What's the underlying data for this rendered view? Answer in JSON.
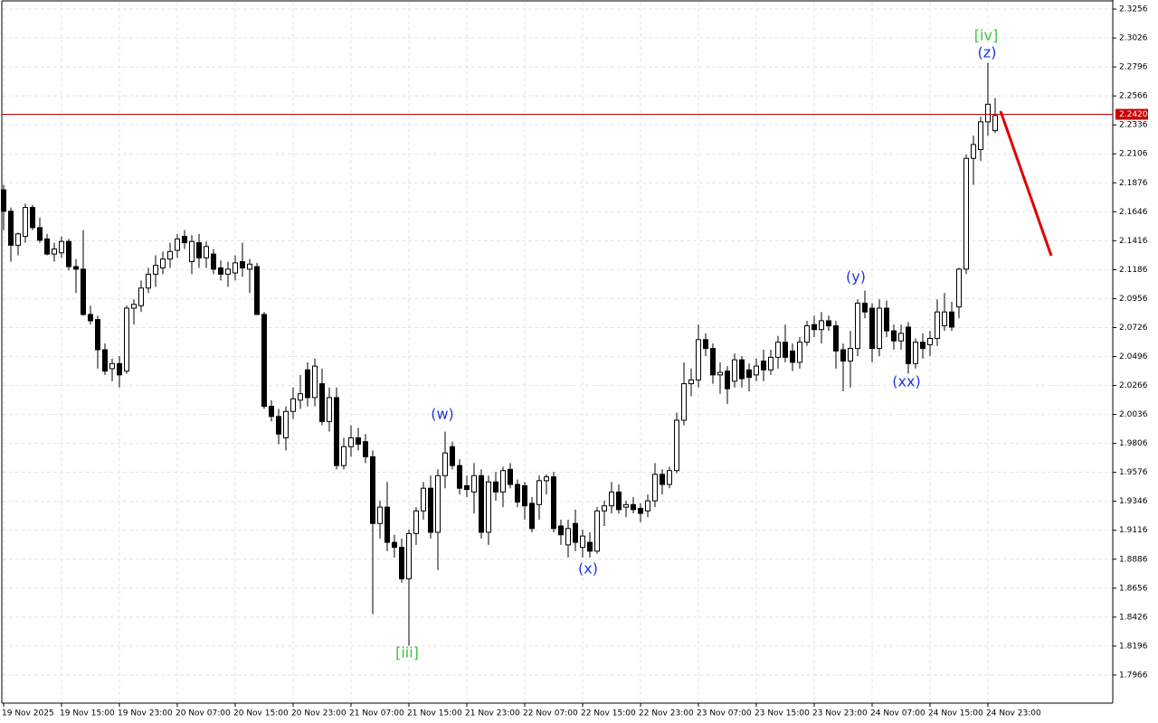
{
  "chart_data": {
    "type": "candlestick",
    "categories": [
      "19 Nov 2025",
      null,
      null,
      null,
      null,
      null,
      null,
      null,
      "19 Nov 15:00",
      null,
      null,
      null,
      null,
      null,
      null,
      null,
      "19 Nov 23:00",
      null,
      null,
      null,
      null,
      null,
      null,
      null,
      "20 Nov 07:00",
      null,
      null,
      null,
      null,
      null,
      null,
      null,
      "20 Nov 15:00",
      null,
      null,
      null,
      null,
      null,
      null,
      null,
      "20 Nov 23:00",
      null,
      null,
      null,
      null,
      null,
      null,
      null,
      "21 Nov 07:00",
      null,
      null,
      null,
      null,
      null,
      null,
      null,
      "21 Nov 15:00",
      null,
      null,
      null,
      null,
      null,
      null,
      null,
      "21 Nov 23:00",
      null,
      null,
      null,
      null,
      null,
      null,
      null,
      "22 Nov 07:00",
      null,
      null,
      null,
      null,
      null,
      null,
      null,
      "22 Nov 15:00",
      null,
      null,
      null,
      null,
      null,
      null,
      null,
      "22 Nov 23:00",
      null,
      null,
      null,
      null,
      null,
      null,
      null,
      "23 Nov 07:00",
      null,
      null,
      null,
      null,
      null,
      null,
      null,
      "23 Nov 15:00",
      null,
      null,
      null,
      null,
      null,
      null,
      null,
      "23 Nov 23:00",
      null,
      null,
      null,
      null,
      null,
      null,
      null,
      "24 Nov 07:00",
      null,
      null,
      null,
      null,
      null,
      null,
      null,
      "24 Nov 15:00",
      null,
      null,
      null,
      null,
      null,
      null,
      null,
      "24 Nov 23:00",
      null
    ],
    "open": [
      2.182,
      2.165,
      2.138,
      2.145,
      2.168,
      2.152,
      2.143,
      2.131,
      2.132,
      2.141,
      2.121,
      2.119,
      2.083,
      2.079,
      2.055,
      2.04,
      2.044,
      2.038,
      2.088,
      2.09,
      2.104,
      2.115,
      2.12,
      2.127,
      2.134,
      2.145,
      2.125,
      2.14,
      2.128,
      2.131,
      2.12,
      2.115,
      2.116,
      2.125,
      2.119,
      2.121,
      2.083,
      2.01,
      2.002,
      1.985,
      2.006,
      2.015,
      2.039,
      2.017,
      2.028,
      1.998,
      2.017,
      1.963,
      1.978,
      1.985,
      1.982,
      1.97,
      1.917,
      1.93,
      1.902,
      1.898,
      1.873,
      1.909,
      1.927,
      1.945,
      1.91,
      1.955,
      1.978,
      1.963,
      1.947,
      1.942,
      1.955,
      1.91,
      1.95,
      1.942,
      1.96,
      1.948,
      1.947,
      1.933,
      1.932,
      1.951,
      1.954,
      1.915,
      1.9,
      1.917,
      1.898,
      1.902,
      1.895,
      1.927,
      1.931,
      1.942,
      1.93,
      1.932,
      1.929,
      1.927,
      1.935,
      1.956,
      1.948,
      1.959,
      1.999,
      2.028,
      2.031,
      2.063,
      2.056,
      2.035,
      2.038,
      2.03,
      2.047,
      2.039,
      2.035,
      2.046,
      2.039,
      2.049,
      2.061,
      2.054,
      2.045,
      2.061,
      2.075,
      2.071,
      2.078,
      2.074,
      2.055,
      2.046,
      2.056,
      2.092,
      2.088,
      2.056,
      2.088,
      2.07,
      2.062,
      2.073,
      2.044,
      2.061,
      2.059,
      2.064,
      2.074,
      2.085,
      2.089,
      2.119,
      2.207,
      2.214,
      2.236,
      2.229
    ],
    "high": [
      2.186,
      2.168,
      2.148,
      2.171,
      2.17,
      2.16,
      2.147,
      2.14,
      2.145,
      2.143,
      2.127,
      2.15,
      2.09,
      2.082,
      2.06,
      2.048,
      2.05,
      2.09,
      2.095,
      2.11,
      2.12,
      2.13,
      2.133,
      2.14,
      2.147,
      2.15,
      2.146,
      2.147,
      2.141,
      2.135,
      2.126,
      2.125,
      2.13,
      2.14,
      2.127,
      2.124,
      2.085,
      2.015,
      2.008,
      2.01,
      2.025,
      2.035,
      2.045,
      2.048,
      2.04,
      2.025,
      2.025,
      1.985,
      1.995,
      1.993,
      1.988,
      1.975,
      1.935,
      1.95,
      1.908,
      1.905,
      1.912,
      1.93,
      1.95,
      1.955,
      1.96,
      1.99,
      1.982,
      1.968,
      1.955,
      1.965,
      1.96,
      1.955,
      1.958,
      1.962,
      1.965,
      1.952,
      1.95,
      1.938,
      1.955,
      1.956,
      1.958,
      1.92,
      1.92,
      1.928,
      1.912,
      1.91,
      1.93,
      1.935,
      1.95,
      1.948,
      1.935,
      1.938,
      1.933,
      1.94,
      1.965,
      1.96,
      1.962,
      2.005,
      2.045,
      2.04,
      2.075,
      2.068,
      2.06,
      2.045,
      2.042,
      2.052,
      2.05,
      2.044,
      2.048,
      2.055,
      2.055,
      2.066,
      2.075,
      2.06,
      2.065,
      2.078,
      2.082,
      2.085,
      2.082,
      2.078,
      2.06,
      2.07,
      2.095,
      2.102,
      2.092,
      2.095,
      2.094,
      2.075,
      2.075,
      2.077,
      2.064,
      2.068,
      2.07,
      2.095,
      2.1,
      2.093,
      2.12,
      2.21,
      2.225,
      2.24,
      2.283,
      2.255
    ],
    "low": [
      2.15,
      2.125,
      2.13,
      2.14,
      2.15,
      2.14,
      2.13,
      2.125,
      2.128,
      2.118,
      2.1,
      2.082,
      2.075,
      2.04,
      2.035,
      2.03,
      2.025,
      2.036,
      2.075,
      2.085,
      2.1,
      2.105,
      2.115,
      2.12,
      2.128,
      2.135,
      2.115,
      2.12,
      2.12,
      2.115,
      2.11,
      2.105,
      2.11,
      2.113,
      2.1,
      2.085,
      2.008,
      1.998,
      1.98,
      1.975,
      2.0,
      2.008,
      2.01,
      2.01,
      1.995,
      1.99,
      1.96,
      1.96,
      1.97,
      1.975,
      1.965,
      1.845,
      1.905,
      1.895,
      1.89,
      1.87,
      1.82,
      1.9,
      1.92,
      1.905,
      1.88,
      1.945,
      1.96,
      1.94,
      1.938,
      1.925,
      1.905,
      1.9,
      1.935,
      1.93,
      1.945,
      1.93,
      1.92,
      1.91,
      1.92,
      1.94,
      1.91,
      1.9,
      1.89,
      1.895,
      1.89,
      1.89,
      1.893,
      1.915,
      1.925,
      1.925,
      1.922,
      1.925,
      1.918,
      1.922,
      1.93,
      1.94,
      1.945,
      1.957,
      1.995,
      2.018,
      2.025,
      2.05,
      2.028,
      2.02,
      2.012,
      2.025,
      2.025,
      2.022,
      2.03,
      2.03,
      2.035,
      2.04,
      2.045,
      2.038,
      2.04,
      2.058,
      2.065,
      2.06,
      2.07,
      2.04,
      2.022,
      2.025,
      2.05,
      2.08,
      2.045,
      2.05,
      2.065,
      2.055,
      2.055,
      2.036,
      2.04,
      2.048,
      2.05,
      2.058,
      2.07,
      2.07,
      2.08,
      2.115,
      2.186,
      2.205,
      2.225,
      2.227
    ],
    "close": [
      2.165,
      2.138,
      2.147,
      2.168,
      2.152,
      2.142,
      2.131,
      2.135,
      2.141,
      2.121,
      2.119,
      2.083,
      2.078,
      2.055,
      2.038,
      2.044,
      2.035,
      2.088,
      2.091,
      2.104,
      2.115,
      2.122,
      2.127,
      2.133,
      2.143,
      2.14,
      2.141,
      2.128,
      2.137,
      2.119,
      2.115,
      2.119,
      2.124,
      2.12,
      2.123,
      2.083,
      2.01,
      2.002,
      1.988,
      2.006,
      2.016,
      2.02,
      2.017,
      2.042,
      1.998,
      2.017,
      1.963,
      1.978,
      1.985,
      1.98,
      1.97,
      1.917,
      1.93,
      1.902,
      1.898,
      1.873,
      1.909,
      1.927,
      1.945,
      1.91,
      1.955,
      1.973,
      1.963,
      1.945,
      1.944,
      1.955,
      1.91,
      1.95,
      1.942,
      1.959,
      1.948,
      1.934,
      1.931,
      1.913,
      1.951,
      1.954,
      1.913,
      1.908,
      1.913,
      1.902,
      1.907,
      1.895,
      1.927,
      1.931,
      1.942,
      1.928,
      1.932,
      1.928,
      1.925,
      1.935,
      1.956,
      1.948,
      1.959,
      1.999,
      2.028,
      2.031,
      2.063,
      2.056,
      2.035,
      2.037,
      2.024,
      2.047,
      2.032,
      2.033,
      2.042,
      2.039,
      2.049,
      2.061,
      2.049,
      2.045,
      2.061,
      2.074,
      2.071,
      2.078,
      2.074,
      2.054,
      2.046,
      2.056,
      2.092,
      2.085,
      2.056,
      2.088,
      2.07,
      2.062,
      2.068,
      2.044,
      2.061,
      2.056,
      2.064,
      2.085,
      2.085,
      2.073,
      2.119,
      2.207,
      2.218,
      2.236,
      2.25,
      2.241
    ],
    "up_color": "#ffffff",
    "down_color": "#000000",
    "ylim": [
      1.7743,
      2.3328
    ],
    "yticks": [
      2.3256,
      2.3026,
      2.2796,
      2.2566,
      2.2336,
      2.2106,
      2.1876,
      2.1646,
      2.1416,
      2.1186,
      2.0956,
      2.0726,
      2.0496,
      2.0266,
      2.0036,
      1.9806,
      1.9576,
      1.9346,
      1.9116,
      1.8886,
      1.8656,
      1.8426,
      1.8196,
      1.7966
    ],
    "grid": true,
    "current_price": {
      "value": 2.242,
      "label": "2.2420"
    },
    "current_price_color": "#cc0000",
    "annotations": [
      "[iii]",
      "(w)",
      "(x)",
      "(y)",
      "(xx)",
      "(z)",
      "[iv]"
    ]
  }
}
